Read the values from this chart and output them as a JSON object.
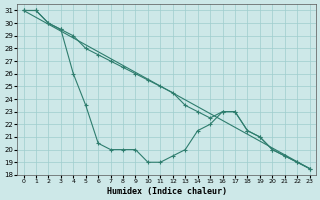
{
  "xlabel": "Humidex (Indice chaleur)",
  "background_color": "#cde8e8",
  "grid_color": "#9ecece",
  "line_color": "#2e7d6e",
  "ylim": [
    18,
    31.5
  ],
  "xlim": [
    -0.5,
    23.5
  ],
  "yticks": [
    18,
    19,
    20,
    21,
    22,
    23,
    24,
    25,
    26,
    27,
    28,
    29,
    30,
    31
  ],
  "xticks": [
    0,
    1,
    2,
    3,
    4,
    5,
    6,
    7,
    8,
    9,
    10,
    11,
    12,
    13,
    14,
    15,
    16,
    17,
    18,
    19,
    20,
    21,
    22,
    23
  ],
  "straight_line": [
    [
      0,
      31
    ],
    [
      23,
      18.5
    ]
  ],
  "upper_line_x": [
    0,
    1,
    2,
    3,
    4,
    5,
    6,
    7,
    8,
    9,
    10,
    11,
    12,
    13,
    14,
    15,
    16,
    17,
    18,
    19,
    20,
    21,
    22,
    23
  ],
  "upper_line_y": [
    31,
    31,
    30,
    29.5,
    29,
    28,
    27.5,
    27,
    26.5,
    26,
    25.5,
    25,
    24.5,
    23.5,
    23,
    22.5,
    23,
    23,
    21.5,
    21,
    20,
    19.5,
    19,
    18.5
  ],
  "curve_x": [
    0,
    1,
    2,
    3,
    4,
    5,
    6,
    7,
    8,
    9,
    10,
    11,
    12,
    13,
    14,
    15,
    16,
    17,
    18,
    19,
    20,
    21,
    22,
    23
  ],
  "curve_y": [
    31,
    31,
    30,
    29.5,
    26,
    23.5,
    20.5,
    20,
    20,
    20,
    19,
    19,
    19.5,
    20,
    21.5,
    22,
    23,
    23,
    21.5,
    21,
    20,
    19.5,
    19,
    18.5
  ]
}
